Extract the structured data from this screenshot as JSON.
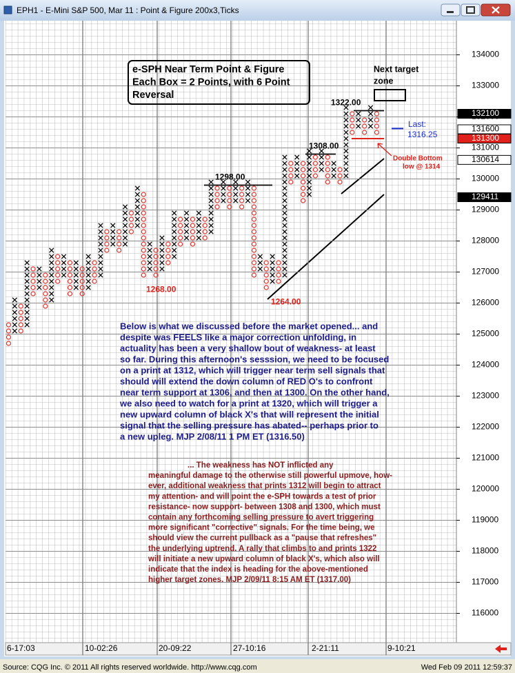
{
  "window": {
    "title": "EPH1 - E-Mini S&P 500, Mar 11 : Point & Figure 200x3,Ticks"
  },
  "chart_data": {
    "type": "point-and-figure",
    "box_size": 200,
    "ylim": [
      115100,
      135100
    ],
    "yticks": [
      116000,
      117000,
      118000,
      119000,
      120000,
      121000,
      122000,
      123000,
      124000,
      125000,
      126000,
      127000,
      128000,
      129000,
      130000,
      131000,
      132000,
      133000,
      134000
    ],
    "x_labels": [
      "6-17:03",
      "10-02:26",
      "20-09:22",
      "27-10:16",
      "2-21:11",
      "9-10:21"
    ],
    "colors": {
      "X": "#000000",
      "O": "#e0302a"
    },
    "columns": [
      {
        "kind": "O",
        "low": 124600,
        "high": 125200
      },
      {
        "kind": "X",
        "low": 125000,
        "high": 126000
      },
      {
        "kind": "O",
        "low": 125000,
        "high": 125800
      },
      {
        "kind": "X",
        "low": 125200,
        "high": 127200
      },
      {
        "kind": "O",
        "low": 126200,
        "high": 127000
      },
      {
        "kind": "X",
        "low": 126400,
        "high": 127000
      },
      {
        "kind": "O",
        "low": 125800,
        "high": 126800
      },
      {
        "kind": "X",
        "low": 126000,
        "high": 127600
      },
      {
        "kind": "O",
        "low": 126600,
        "high": 127400
      },
      {
        "kind": "X",
        "low": 126800,
        "high": 127400
      },
      {
        "kind": "O",
        "low": 126200,
        "high": 127200
      },
      {
        "kind": "X",
        "low": 126400,
        "high": 127200
      },
      {
        "kind": "O",
        "low": 126200,
        "high": 127000
      },
      {
        "kind": "X",
        "low": 126400,
        "high": 127400
      },
      {
        "kind": "O",
        "low": 126600,
        "high": 127200
      },
      {
        "kind": "X",
        "low": 126800,
        "high": 128400
      },
      {
        "kind": "O",
        "low": 127600,
        "high": 128200
      },
      {
        "kind": "X",
        "low": 127800,
        "high": 128400
      },
      {
        "kind": "O",
        "low": 127600,
        "high": 128200
      },
      {
        "kind": "X",
        "low": 127800,
        "high": 129000
      },
      {
        "kind": "O",
        "low": 128200,
        "high": 128800
      },
      {
        "kind": "X",
        "low": 128400,
        "high": 129600
      },
      {
        "kind": "O",
        "low": 126800,
        "high": 129400
      },
      {
        "kind": "X",
        "low": 127000,
        "high": 127800
      },
      {
        "kind": "O",
        "low": 126800,
        "high": 127600
      },
      {
        "kind": "X",
        "low": 127000,
        "high": 128000
      },
      {
        "kind": "O",
        "low": 127200,
        "high": 127800
      },
      {
        "kind": "X",
        "low": 127400,
        "high": 128800
      },
      {
        "kind": "O",
        "low": 127800,
        "high": 128600
      },
      {
        "kind": "X",
        "low": 128000,
        "high": 128800
      },
      {
        "kind": "O",
        "low": 127800,
        "high": 128600
      },
      {
        "kind": "X",
        "low": 128000,
        "high": 128800
      },
      {
        "kind": "O",
        "low": 128000,
        "high": 128600
      },
      {
        "kind": "X",
        "low": 128200,
        "high": 129800
      },
      {
        "kind": "O",
        "low": 129000,
        "high": 129600
      },
      {
        "kind": "X",
        "low": 129200,
        "high": 129800
      },
      {
        "kind": "O",
        "low": 129000,
        "high": 129600
      },
      {
        "kind": "X",
        "low": 129200,
        "high": 129800
      },
      {
        "kind": "O",
        "low": 129000,
        "high": 129600
      },
      {
        "kind": "X",
        "low": 129200,
        "high": 129800
      },
      {
        "kind": "O",
        "low": 126800,
        "high": 129600
      },
      {
        "kind": "X",
        "low": 127000,
        "high": 127400
      },
      {
        "kind": "O",
        "low": 126400,
        "high": 127200
      },
      {
        "kind": "X",
        "low": 126600,
        "high": 127400
      },
      {
        "kind": "O",
        "low": 126600,
        "high": 127200
      },
      {
        "kind": "X",
        "low": 126800,
        "high": 130600
      },
      {
        "kind": "O",
        "low": 129800,
        "high": 130400
      },
      {
        "kind": "X",
        "low": 130000,
        "high": 130600
      },
      {
        "kind": "O",
        "low": 129200,
        "high": 130400
      },
      {
        "kind": "X",
        "low": 129400,
        "high": 130800
      },
      {
        "kind": "O",
        "low": 130000,
        "high": 130600
      },
      {
        "kind": "X",
        "low": 130200,
        "high": 130800
      },
      {
        "kind": "O",
        "low": 129800,
        "high": 130600
      },
      {
        "kind": "X",
        "low": 130000,
        "high": 130400
      },
      {
        "kind": "O",
        "low": 129800,
        "high": 130200
      },
      {
        "kind": "X",
        "low": 130000,
        "high": 132200
      },
      {
        "kind": "O",
        "low": 131400,
        "high": 132000
      },
      {
        "kind": "X",
        "low": 131600,
        "high": 132000
      },
      {
        "kind": "O",
        "low": 131400,
        "high": 131800
      },
      {
        "kind": "X",
        "low": 131600,
        "high": 132200
      },
      {
        "kind": "O",
        "low": 131400,
        "high": 132000
      }
    ],
    "price_markers": [
      {
        "value": 132100,
        "bg": "#000000",
        "fg": "#ffffff"
      },
      {
        "value": 131600,
        "bg": "#ffffff",
        "fg": "#000000"
      },
      {
        "value": 131300,
        "bg": "#e0201a",
        "fg": "#ffffff"
      },
      {
        "value": 130614,
        "bg": "#ffffff",
        "fg": "#000000"
      },
      {
        "value": 129411,
        "bg": "#000000",
        "fg": "#ffffff"
      }
    ],
    "levels": [
      {
        "value": 132200,
        "label": "1322.00",
        "style": "resistance"
      },
      {
        "value": 130800,
        "label": "1308.00",
        "style": "resistance"
      },
      {
        "value": 129800,
        "label": "1298.00",
        "style": "resistance"
      },
      {
        "value": 126800,
        "label": "1268.00",
        "style": "low"
      },
      {
        "value": 126400,
        "label": "1264.00",
        "style": "low"
      }
    ],
    "last_value": 131625,
    "support_line": 131300,
    "annotations": {
      "header": [
        "e-SPH Near Term Point & Figure",
        "Each Box = 2 Points, with 6 Point",
        "Reversal"
      ],
      "target": [
        "Next target",
        "zone"
      ],
      "last": [
        "Last:",
        "1316.25"
      ],
      "double_bottom": [
        "Double Bottom",
        "low @ 1314"
      ],
      "note_1": [
        "Below is what we discussed before the market opened... and",
        "despite was FEELS like a major correction unfolding, in",
        "actuality has been a very shallow bout of weakness- at least",
        "so far. During this afternoon's sesssion, we need to be focused",
        "on a print at 1312, which will trigger near term sell signals that",
        "should will extend the down column of RED O's to confront",
        "near term support at 1306, and then at 1300. On the other hand,",
        "we also need to watch for a print at 1320, which will trigger a",
        "new upward column of black X's that will represent the initial",
        "signal that the selling pressure has abated-- perhaps prior to",
        "a new upleg.  MJP  2/08/11  1 PM ET  (1316.50)"
      ],
      "note_2": [
        "... The weakness has NOT inflicted any",
        "meaningful damage to the otherwise still powerful upmove, how-",
        "ever, additional weakness that prints 1312 will begin to attract",
        "my attention- and will point the e-SPH towards a test of prior",
        "resistance- now support- between 1308 and 1300, which must",
        "contain any forthcoming selling pressure to avert triggering",
        "more significant \"corrective\" signals. For the time being, we",
        "should view the current pullback as a \"pause that refreshes\"",
        "the underlying uptrend. A rally that climbs to and prints 1322",
        "will initiate a new upward column of black X's, which also will",
        "indicate that the index is heading for the above-mentioned",
        "higher target zones.  MJP  2/09/11  8:15 AM ET  (1317.00)"
      ]
    }
  },
  "footer": {
    "source": "Source: CQG Inc. © 2011 All rights reserved worldwide. http://www.cqg.com",
    "timestamp": "Wed Feb 09 2011 12:59:37"
  }
}
